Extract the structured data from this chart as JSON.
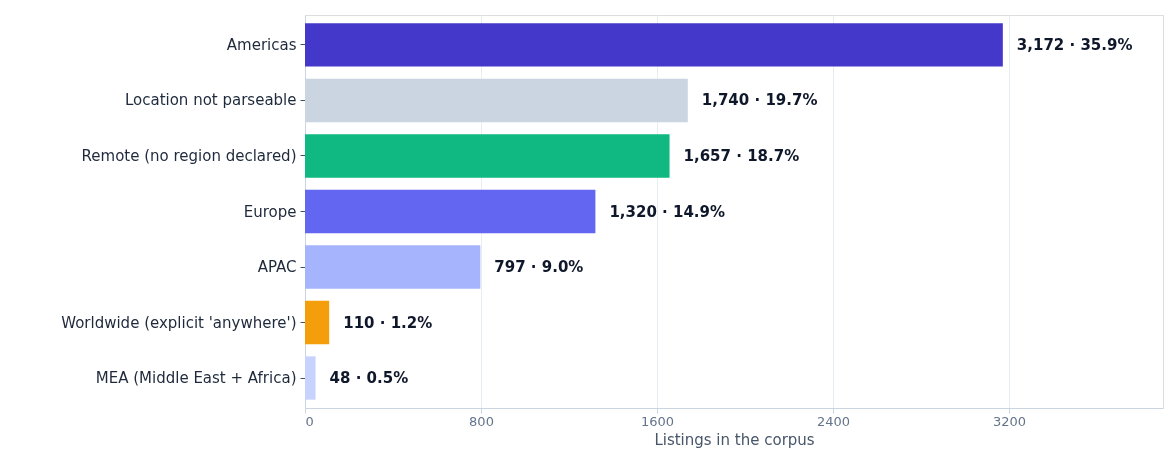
{
  "chart_data": {
    "type": "bar",
    "orientation": "horizontal",
    "categories": [
      "Americas",
      "Location not parseable",
      "Remote (no region declared)",
      "Europe",
      "APAC",
      "Worldwide (explicit 'anywhere')",
      "MEA (Middle East + Africa)"
    ],
    "values": [
      3172,
      1740,
      1657,
      1320,
      797,
      110,
      48
    ],
    "colors": [
      "#4338ca",
      "#cbd5e1",
      "#10b981",
      "#6366f1",
      "#a5b4fc",
      "#f59e0b",
      "#c7d2fe"
    ],
    "value_labels": [
      "3,172 · 35.9%",
      "1,740 · 19.7%",
      "1,657 · 18.7%",
      "1,320 · 14.9%",
      "797 · 9.0%",
      "110 · 1.2%",
      "48 · 0.5%"
    ],
    "xlabel": "Listings in the corpus",
    "xlim": [
      0,
      3900
    ],
    "xticks": [
      0,
      800,
      1600,
      2400,
      3200
    ],
    "grid": "x"
  }
}
